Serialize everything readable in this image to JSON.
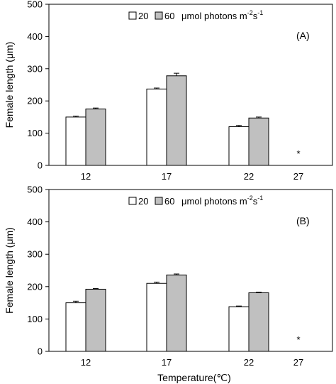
{
  "chart_data": [
    {
      "type": "bar",
      "panel_label": "(A)",
      "ylabel": "Female length (μm)",
      "xlabel": "",
      "ylim": [
        0,
        500
      ],
      "yticks": [
        0,
        100,
        200,
        300,
        400,
        500
      ],
      "categories": [
        "12",
        "17",
        "22",
        "27"
      ],
      "series": [
        {
          "name": "20",
          "color": "#ffffff",
          "values": [
            150,
            237,
            120,
            null
          ],
          "errors": [
            3,
            3,
            4,
            null
          ]
        },
        {
          "name": "60",
          "color": "#c0c0c0",
          "values": [
            175,
            278,
            147,
            null
          ],
          "errors": [
            3,
            8,
            3,
            null
          ]
        }
      ],
      "legend_unit": "μmol photons m",
      "legend_sup1": "-2",
      "legend_s": "s",
      "legend_sup2": "-1",
      "annotations": [
        {
          "category": "27",
          "text": "*"
        }
      ],
      "legend_position": "top",
      "grid": false
    },
    {
      "type": "bar",
      "panel_label": "(B)",
      "ylabel": "Female length (μm)",
      "xlabel": "Temperature(℃)",
      "ylim": [
        0,
        500
      ],
      "yticks": [
        0,
        100,
        200,
        300,
        400,
        500
      ],
      "categories": [
        "12",
        "17",
        "22",
        "27"
      ],
      "series": [
        {
          "name": "20",
          "color": "#ffffff",
          "values": [
            150,
            210,
            138,
            null
          ],
          "errors": [
            5,
            4,
            2,
            null
          ]
        },
        {
          "name": "60",
          "color": "#c0c0c0",
          "values": [
            192,
            236,
            181,
            null
          ],
          "errors": [
            2,
            3,
            2,
            null
          ]
        }
      ],
      "legend_unit": "μmol photons m",
      "legend_sup1": "-2",
      "legend_s": "s",
      "legend_sup2": "-1",
      "annotations": [
        {
          "category": "27",
          "text": "*"
        }
      ],
      "legend_position": "top",
      "grid": false
    }
  ]
}
